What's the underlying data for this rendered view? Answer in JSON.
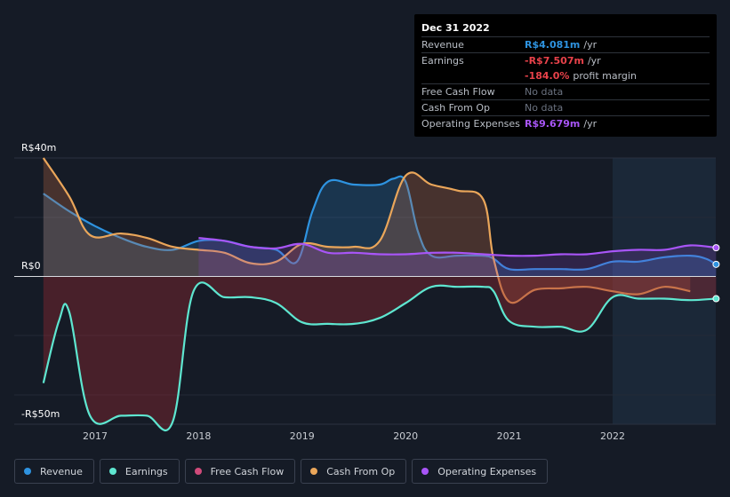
{
  "tooltip": {
    "date": "Dec 31 2022",
    "rows": [
      {
        "label": "Revenue",
        "value": "R$4.081m",
        "unit": "/yr",
        "color": "#2e93e0"
      },
      {
        "label": "Earnings",
        "value": "-R$7.507m",
        "unit": "/yr",
        "color": "#e8424a"
      },
      {
        "label": "",
        "value": "-184.0%",
        "unit": "profit margin",
        "color": "#e8424a"
      },
      {
        "label": "Free Cash Flow",
        "value": "No data",
        "unit": "",
        "color": ""
      },
      {
        "label": "Cash From Op",
        "value": "No data",
        "unit": "",
        "color": ""
      },
      {
        "label": "Operating Expenses",
        "value": "R$9.679m",
        "unit": "/yr",
        "color": "#a855f7"
      }
    ]
  },
  "legend": [
    {
      "label": "Revenue",
      "color": "#2e93e0"
    },
    {
      "label": "Earnings",
      "color": "#5ee6d0"
    },
    {
      "label": "Free Cash Flow",
      "color": "#d04a7a"
    },
    {
      "label": "Cash From Op",
      "color": "#eaa65a"
    },
    {
      "label": "Operating Expenses",
      "color": "#a855f7"
    }
  ],
  "chart_data": {
    "type": "line",
    "ytick_labels": {
      "top": "R$40m",
      "zero": "R$0",
      "bottom": "-R$50m"
    },
    "ylim": [
      -50,
      40
    ],
    "xlim": [
      2016.5,
      2023.0
    ],
    "x_ticks": [
      2017,
      2018,
      2019,
      2020,
      2021,
      2022
    ],
    "highlight_start": 2022.0,
    "series": [
      {
        "name": "Revenue",
        "color": "#2e93e0",
        "points": [
          [
            2016.5,
            28
          ],
          [
            2016.75,
            22
          ],
          [
            2017.0,
            17
          ],
          [
            2017.25,
            13
          ],
          [
            2017.5,
            10
          ],
          [
            2017.75,
            9
          ],
          [
            2018.0,
            12
          ],
          [
            2018.25,
            12
          ],
          [
            2018.5,
            10
          ],
          [
            2018.75,
            9
          ],
          [
            2018.95,
            5
          ],
          [
            2019.1,
            22
          ],
          [
            2019.25,
            32
          ],
          [
            2019.5,
            31
          ],
          [
            2019.75,
            31
          ],
          [
            2019.88,
            33
          ],
          [
            2020.0,
            32
          ],
          [
            2020.12,
            15
          ],
          [
            2020.25,
            7
          ],
          [
            2020.5,
            7
          ],
          [
            2020.75,
            7
          ],
          [
            2020.85,
            6
          ],
          [
            2021.0,
            2.5
          ],
          [
            2021.25,
            2.5
          ],
          [
            2021.5,
            2.5
          ],
          [
            2021.75,
            2.5
          ],
          [
            2022.0,
            5
          ],
          [
            2022.25,
            5
          ],
          [
            2022.5,
            6.5
          ],
          [
            2022.75,
            7
          ],
          [
            2022.9,
            6
          ],
          [
            2023.0,
            4.1
          ]
        ]
      },
      {
        "name": "Cash From Op",
        "color": "#eaa65a",
        "points": [
          [
            2016.5,
            40
          ],
          [
            2016.75,
            27
          ],
          [
            2016.95,
            14
          ],
          [
            2017.25,
            14.5
          ],
          [
            2017.5,
            13
          ],
          [
            2017.75,
            10
          ],
          [
            2018.0,
            9
          ],
          [
            2018.25,
            8
          ],
          [
            2018.5,
            4.5
          ],
          [
            2018.75,
            5
          ],
          [
            2019.0,
            11
          ],
          [
            2019.25,
            10
          ],
          [
            2019.5,
            10
          ],
          [
            2019.75,
            12
          ],
          [
            2020.0,
            34
          ],
          [
            2020.25,
            31
          ],
          [
            2020.5,
            29
          ],
          [
            2020.75,
            26
          ],
          [
            2020.85,
            6
          ],
          [
            2021.0,
            -8.5
          ],
          [
            2021.25,
            -4.5
          ],
          [
            2021.5,
            -4
          ],
          [
            2021.75,
            -3.5
          ],
          [
            2022.0,
            -5
          ],
          [
            2022.25,
            -6
          ],
          [
            2022.5,
            -3.5
          ],
          [
            2022.75,
            -5
          ]
        ]
      },
      {
        "name": "Operating Expenses",
        "color": "#a855f7",
        "points": [
          [
            2018.0,
            13
          ],
          [
            2018.25,
            12
          ],
          [
            2018.5,
            10
          ],
          [
            2018.75,
            9.5
          ],
          [
            2019.0,
            11
          ],
          [
            2019.25,
            8
          ],
          [
            2019.5,
            8
          ],
          [
            2019.75,
            7.5
          ],
          [
            2020.0,
            7.5
          ],
          [
            2020.25,
            8
          ],
          [
            2020.5,
            8
          ],
          [
            2020.75,
            7.5
          ],
          [
            2021.0,
            7
          ],
          [
            2021.25,
            7
          ],
          [
            2021.5,
            7.5
          ],
          [
            2021.75,
            7.5
          ],
          [
            2022.0,
            8.5
          ],
          [
            2022.25,
            9
          ],
          [
            2022.5,
            9
          ],
          [
            2022.75,
            10.5
          ],
          [
            2023.0,
            9.7
          ]
        ]
      },
      {
        "name": "Earnings",
        "color": "#5ee6d0",
        "points": [
          [
            2016.5,
            -36
          ],
          [
            2016.65,
            -15
          ],
          [
            2016.75,
            -12
          ],
          [
            2016.95,
            -47
          ],
          [
            2017.25,
            -47
          ],
          [
            2017.5,
            -47
          ],
          [
            2017.75,
            -49
          ],
          [
            2017.95,
            -5
          ],
          [
            2018.25,
            -7
          ],
          [
            2018.5,
            -7
          ],
          [
            2018.75,
            -9
          ],
          [
            2019.0,
            -15.5
          ],
          [
            2019.25,
            -16
          ],
          [
            2019.5,
            -16
          ],
          [
            2019.75,
            -14
          ],
          [
            2020.0,
            -9
          ],
          [
            2020.25,
            -3.5
          ],
          [
            2020.5,
            -3.5
          ],
          [
            2020.75,
            -3.5
          ],
          [
            2020.85,
            -5
          ],
          [
            2021.0,
            -15
          ],
          [
            2021.25,
            -17
          ],
          [
            2021.5,
            -17
          ],
          [
            2021.75,
            -18
          ],
          [
            2022.0,
            -7
          ],
          [
            2022.25,
            -7.5
          ],
          [
            2022.5,
            -7.5
          ],
          [
            2022.75,
            -8
          ],
          [
            2023.0,
            -7.5
          ]
        ]
      }
    ]
  }
}
